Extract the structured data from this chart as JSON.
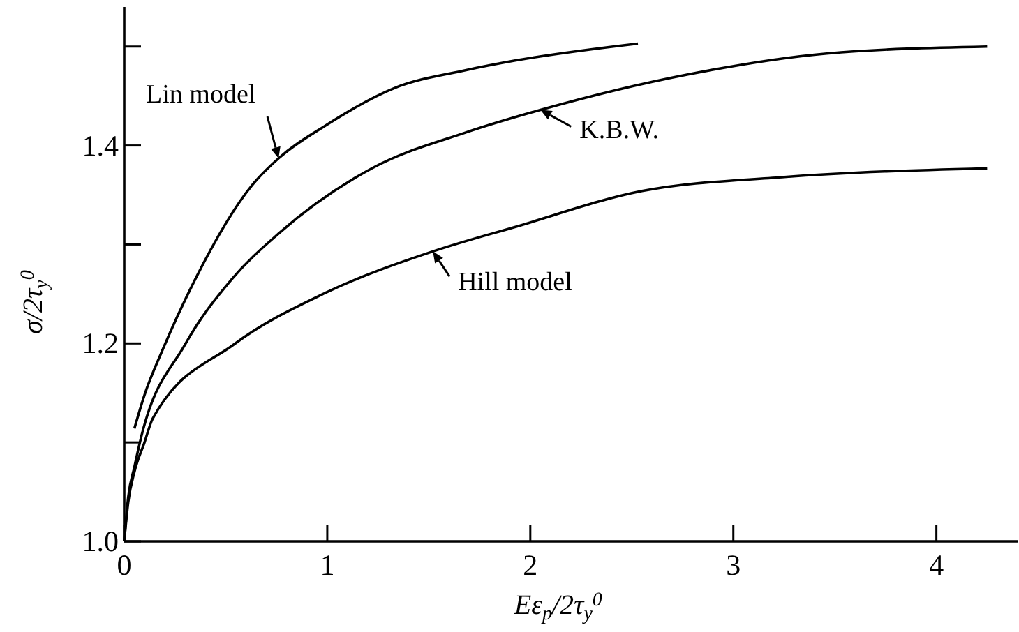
{
  "chart_data": {
    "type": "line",
    "xlabel": "Eε$_{p}$/2τ$_{y}$$^{0}$",
    "ylabel": "σ/2τ$_{y}$$^{0}$",
    "xlim": [
      0,
      4.4
    ],
    "ylim": [
      1.0,
      1.54
    ],
    "xticks": [
      0,
      1,
      2,
      3,
      4
    ],
    "yticks": [
      {
        "value": 1.0,
        "label": "1.0"
      },
      {
        "value": 1.1,
        "label": null
      },
      1.2,
      {
        "value": 1.3,
        "label": null
      },
      1.4,
      {
        "value": 1.5,
        "label": null
      }
    ],
    "line_style": "solid",
    "series": [
      {
        "color": "#000000",
        "x": [
          0.05,
          0.1,
          0.19,
          0.35,
          0.63,
          0.76,
          0.99,
          1.33,
          1.68,
          1.93,
          2.53
        ],
        "values": [
          1.114,
          1.148,
          1.194,
          1.265,
          1.36,
          1.387,
          1.42,
          1.458,
          1.476,
          1.486,
          1.503
        ]
      },
      {
        "color": "#000000",
        "x": [
          0,
          0.02,
          0.05,
          0.076,
          0.3,
          0.53,
          0.76,
          1.22,
          1.68,
          2.05,
          2.78,
          3.46,
          4.25
        ],
        "values": [
          1.0,
          1.045,
          1.075,
          1.099,
          1.199,
          1.265,
          1.311,
          1.377,
          1.413,
          1.436,
          1.472,
          1.493,
          1.5
        ]
      },
      {
        "color": "#000000",
        "x": [
          0,
          0.02,
          0.05,
          0.1,
          0.14,
          0.54,
          0.99,
          1.52,
          1.93,
          2.55,
          3.24,
          4.25
        ],
        "values": [
          1.0,
          1.04,
          1.07,
          1.1,
          1.124,
          1.199,
          1.251,
          1.293,
          1.318,
          1.354,
          1.368,
          1.377
        ]
      }
    ],
    "annotations": [
      {
        "text": "Lin model",
        "x": 0.76,
        "y": 1.387
      },
      {
        "text": "K.B.W.",
        "x": 2.05,
        "y": 1.436
      },
      {
        "text": "Hill model",
        "x": 1.52,
        "y": 1.293
      }
    ]
  }
}
